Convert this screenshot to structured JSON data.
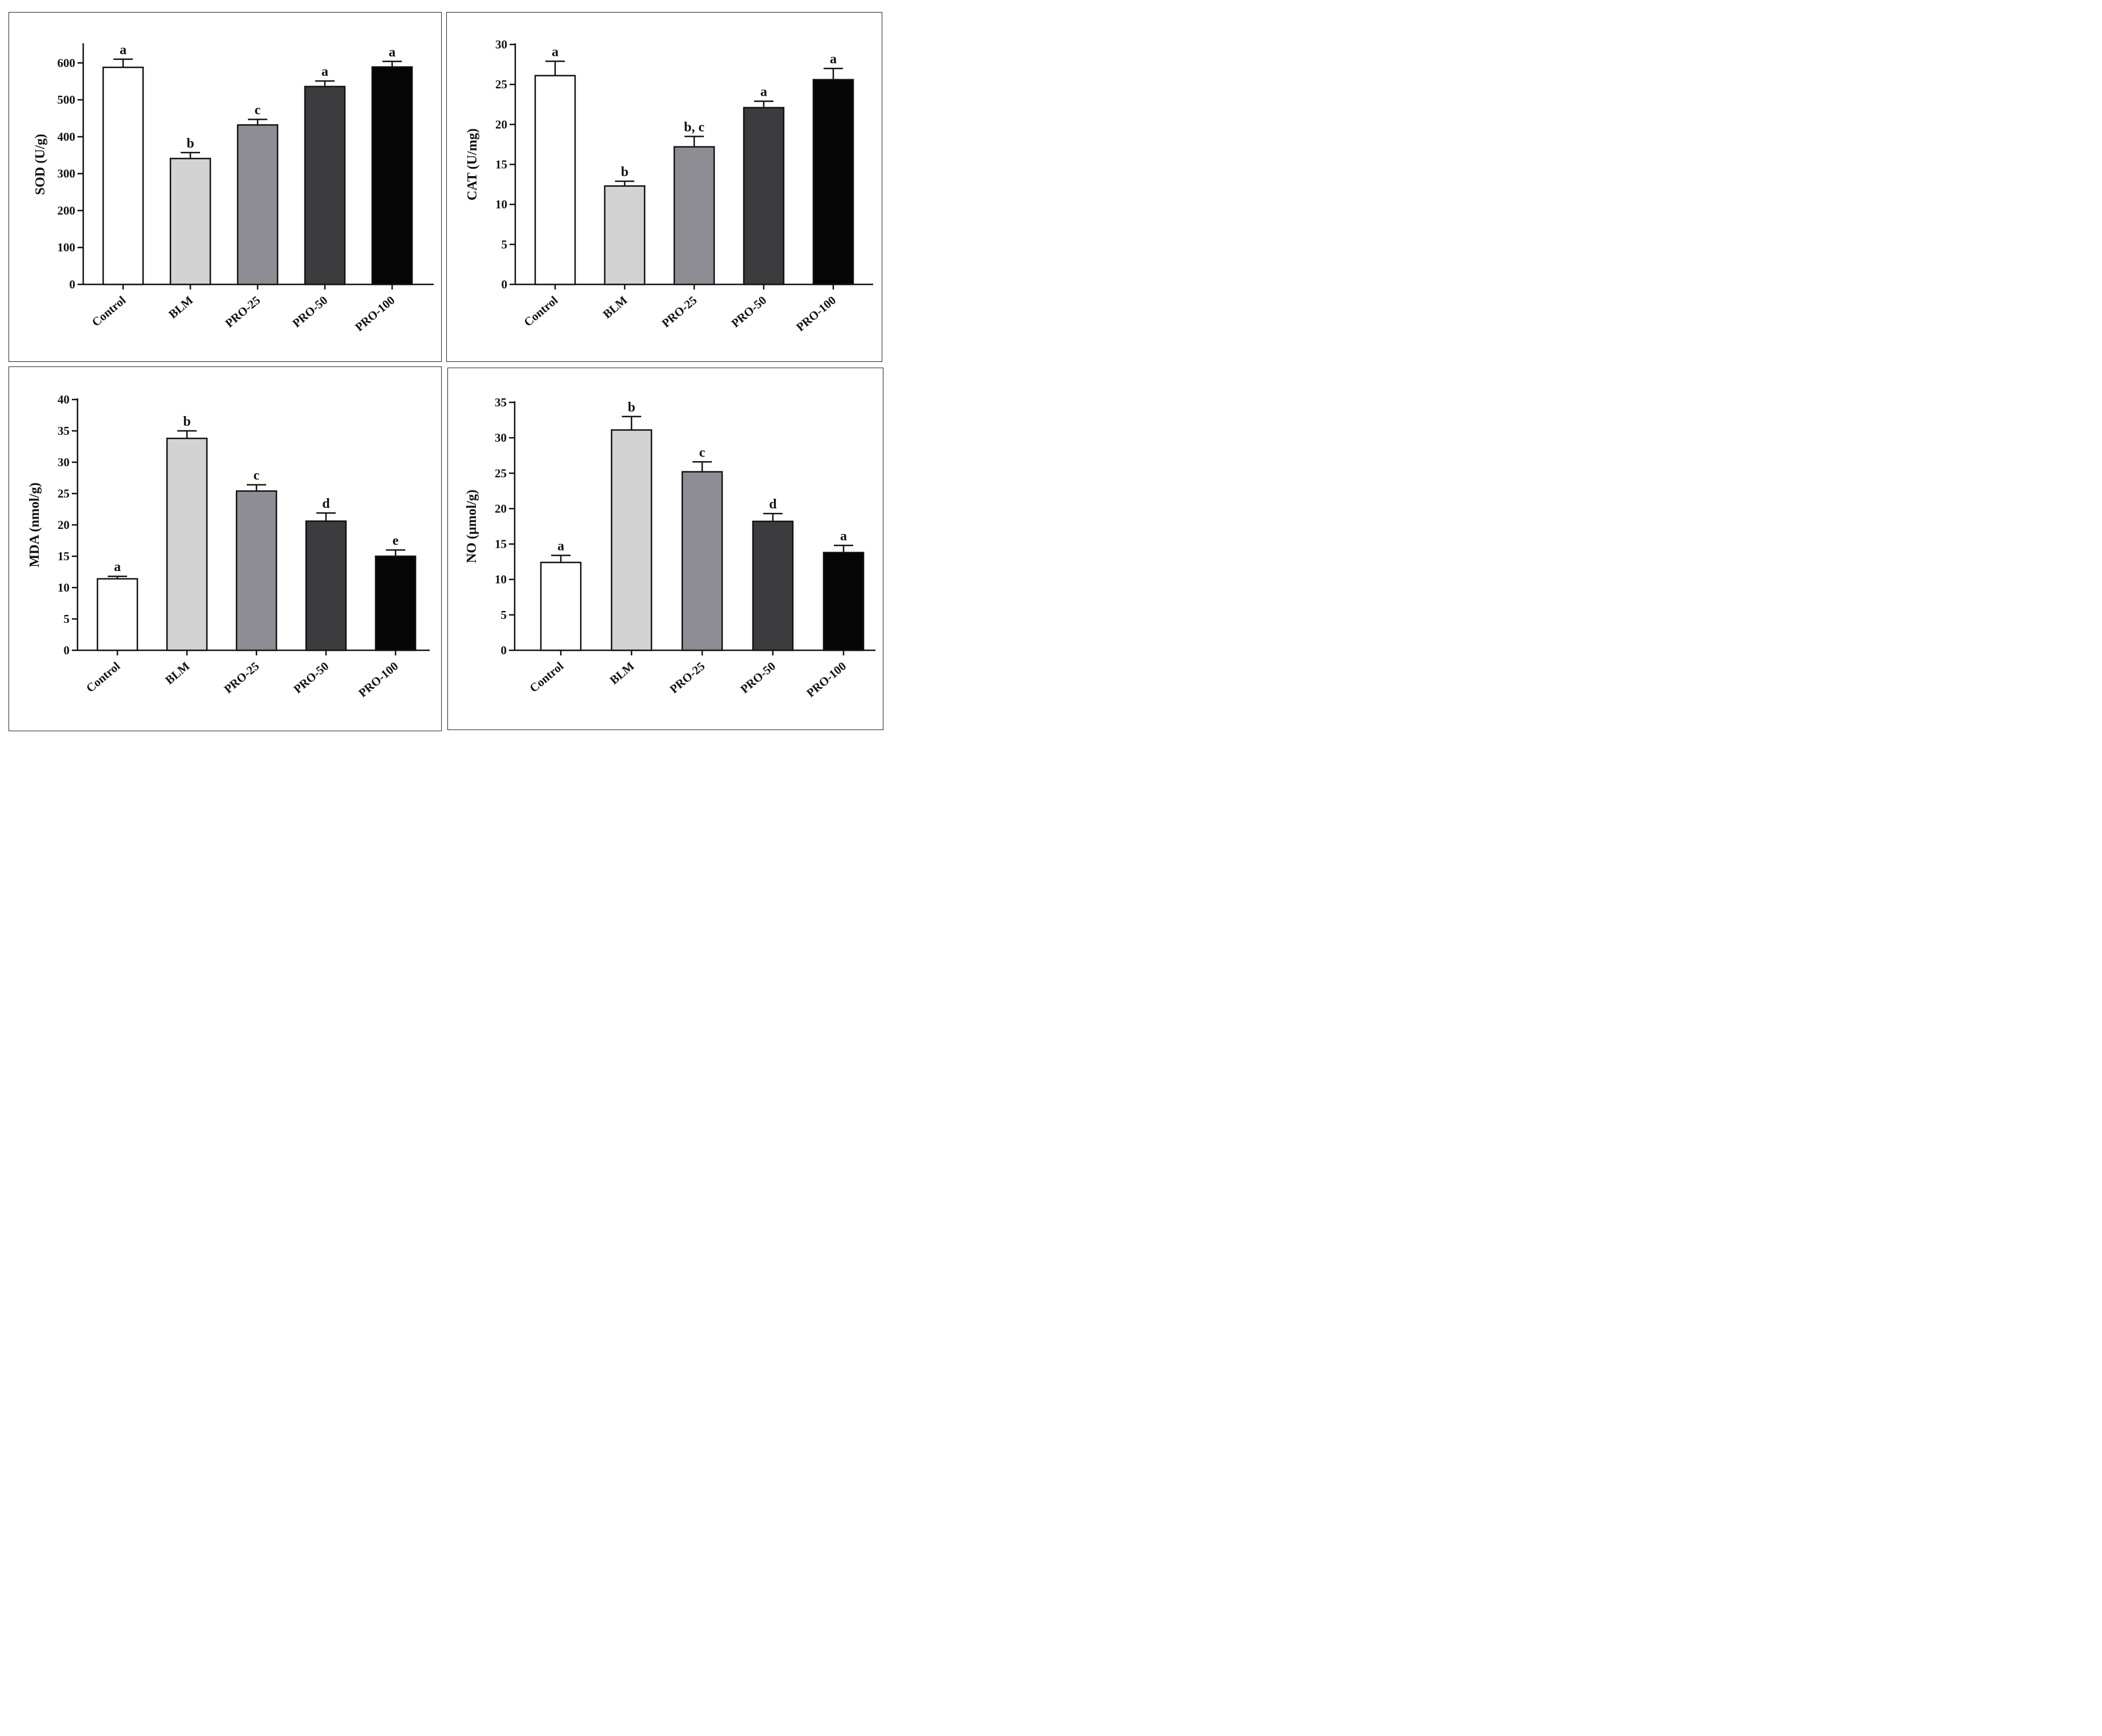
{
  "colors": {
    "Control": "#ffffff",
    "BLM": "#d3d3d3",
    "PRO-25": "#8d8d93",
    "PRO-50": "#3c3c3e",
    "PRO-100": "#050505",
    "axis": "#111111"
  },
  "chart_data": [
    {
      "type": "bar",
      "ylabel": "SOD (U/g)",
      "categories": [
        "Control",
        "BLM",
        "PRO-25",
        "PRO-50",
        "PRO-100"
      ],
      "values": [
        588,
        341,
        432,
        536,
        589
      ],
      "errors": [
        22,
        16,
        15,
        15,
        15
      ],
      "significance": [
        "a",
        "b",
        "c",
        "a",
        "a"
      ],
      "ylim": [
        0,
        650
      ],
      "yticks": [
        "0",
        "100",
        "200",
        "300",
        "400",
        "500",
        "600"
      ]
    },
    {
      "type": "bar",
      "ylabel": "CAT (U/mg)",
      "categories": [
        "Control",
        "BLM",
        "PRO-25",
        "PRO-50",
        "PRO-100"
      ],
      "values": [
        26.1,
        12.3,
        17.2,
        22.1,
        25.6
      ],
      "errors": [
        1.8,
        0.6,
        1.3,
        0.8,
        1.4
      ],
      "significance": [
        "a",
        "b",
        "b, c",
        "a",
        "a"
      ],
      "ylim": [
        0,
        30
      ],
      "yticks": [
        "0",
        "5",
        "10",
        "15",
        "20",
        "25",
        "30"
      ]
    },
    {
      "type": "bar",
      "ylabel": "MDA (nmol/g)",
      "categories": [
        "Control",
        "BLM",
        "PRO-25",
        "PRO-50",
        "PRO-100"
      ],
      "values": [
        11.4,
        33.8,
        25.4,
        20.6,
        15.0
      ],
      "errors": [
        0.4,
        1.2,
        1.0,
        1.3,
        1.0
      ],
      "significance": [
        "a",
        "b",
        "c",
        "d",
        "e"
      ],
      "ylim": [
        0,
        40
      ],
      "yticks": [
        "0",
        "5",
        "10",
        "15",
        "20",
        "25",
        "30",
        "35",
        "40"
      ]
    },
    {
      "type": "bar",
      "ylabel": "NO (μmol/g)",
      "categories": [
        "Control",
        "BLM",
        "PRO-25",
        "PRO-50",
        "PRO-100"
      ],
      "values": [
        12.4,
        31.1,
        25.2,
        18.2,
        13.8
      ],
      "errors": [
        1.0,
        1.9,
        1.4,
        1.1,
        1.0
      ],
      "significance": [
        "a",
        "b",
        "c",
        "d",
        "a"
      ],
      "ylim": [
        0,
        35
      ],
      "yticks": [
        "0",
        "5",
        "10",
        "15",
        "20",
        "25",
        "30",
        "35"
      ]
    }
  ]
}
